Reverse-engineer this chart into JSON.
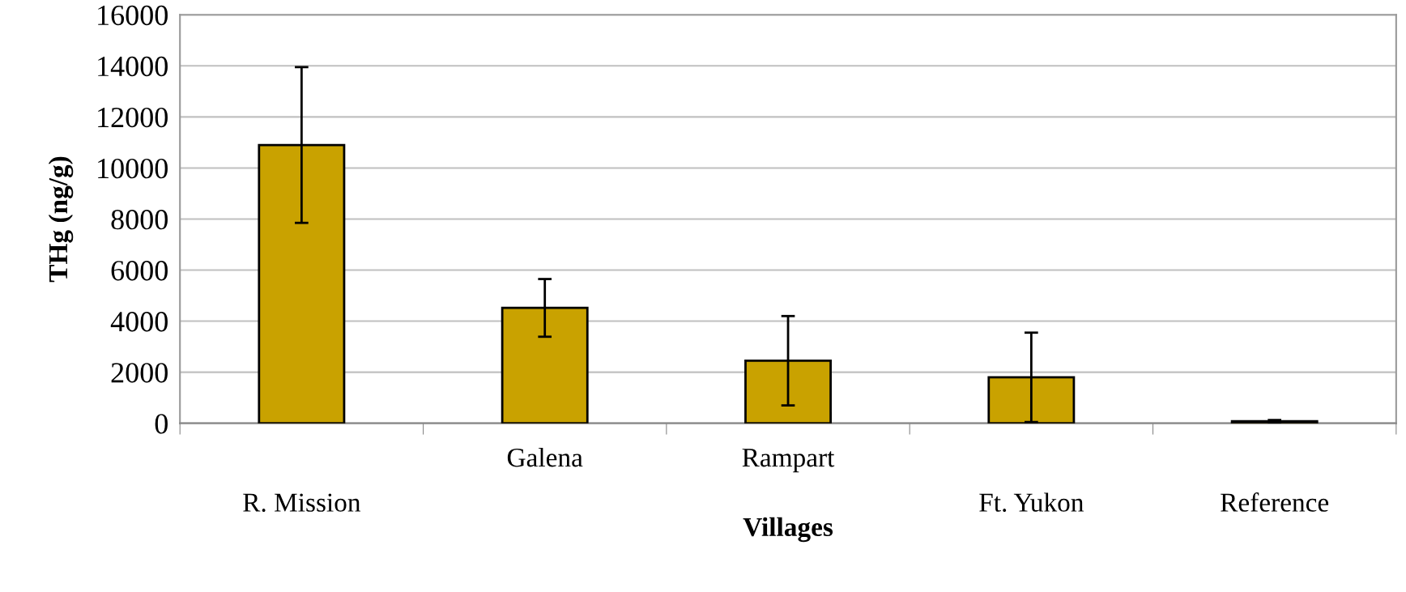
{
  "chart_data": {
    "type": "bar",
    "xlabel": "Villages",
    "ylabel": "THg (ng/g)",
    "categories": [
      "R. Mission",
      "Galena",
      "Rampart",
      "Ft. Yukon",
      "Reference"
    ],
    "values": [
      10900,
      4520,
      2450,
      1800,
      80
    ],
    "errors": [
      3050,
      1130,
      1750,
      1750,
      50
    ],
    "color": "#c9a200",
    "ylim": [
      0,
      16000
    ],
    "yticks": [
      0,
      2000,
      4000,
      6000,
      8000,
      10000,
      12000,
      14000,
      16000
    ],
    "grid": "y"
  }
}
